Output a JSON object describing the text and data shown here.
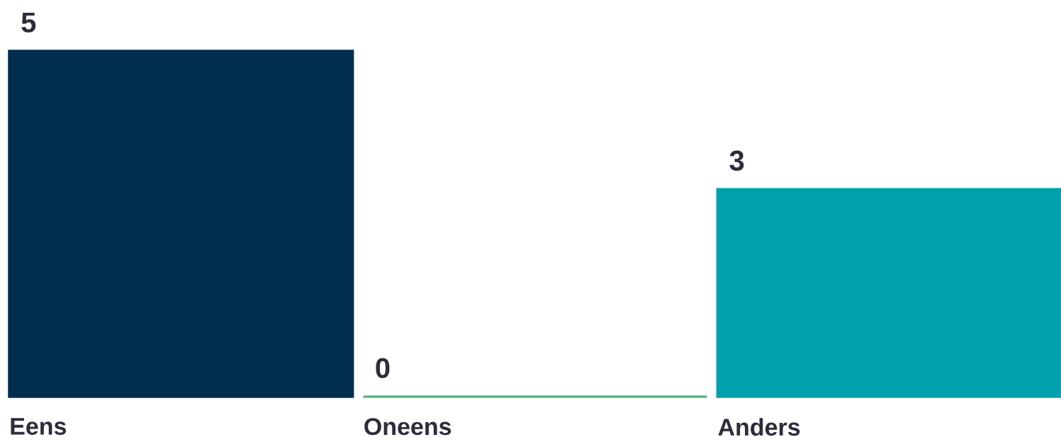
{
  "chart_data": {
    "type": "bar",
    "categories": [
      "Eens",
      "Oneens",
      "Anders"
    ],
    "values": [
      5,
      0,
      3
    ],
    "colors": [
      "#022e4d",
      "#5cb87a",
      "#00a0ad"
    ],
    "data_labels": true
  }
}
